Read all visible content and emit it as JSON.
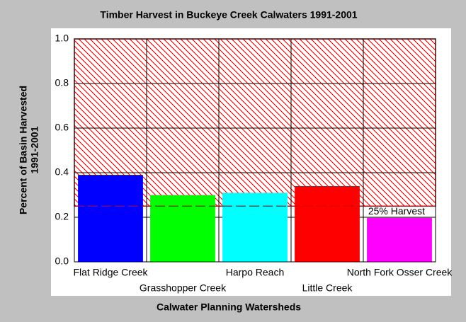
{
  "chart_data": {
    "type": "bar",
    "title": "Timber Harvest in Buckeye Creek Calwaters 1991-2001",
    "y_label": [
      "Percent of Basin Harvested",
      "1991-2001"
    ],
    "x_label": "Calwater Planning Watersheds",
    "categories": [
      "Flat Ridge Creek",
      "Grasshopper Creek",
      "Harpo Reach",
      "Little Creek",
      "North Fork Osser Creek"
    ],
    "values": [
      0.39,
      0.3,
      0.31,
      0.34,
      0.2
    ],
    "colors": [
      "#0000ff",
      "#00ff00",
      "#00ffff",
      "#ff0000",
      "#ff00ff"
    ],
    "ylim": [
      0,
      1
    ],
    "yticks": [
      {
        "value": 0,
        "label": "0.0"
      },
      0.2,
      0.4,
      0.6,
      0.8,
      {
        "value": 1,
        "label": "1.0"
      }
    ],
    "grid": true,
    "threshold": 0.25,
    "threshold_label": "25% Harvest",
    "threshold_color": "#cc0000"
  }
}
